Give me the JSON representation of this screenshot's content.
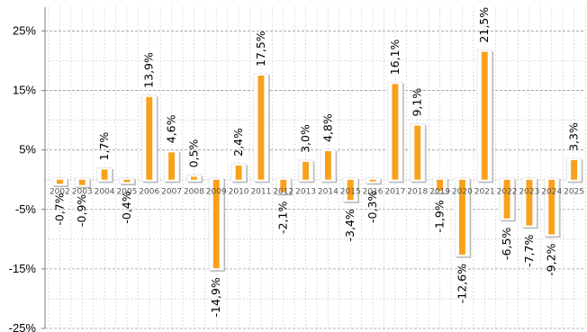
{
  "chart_data": {
    "type": "bar",
    "categories": [
      "2002",
      "2003",
      "2004",
      "2005",
      "2006",
      "2007",
      "2008",
      "2009",
      "2010",
      "2011",
      "2012",
      "2013",
      "2014",
      "2015",
      "2016",
      "2017",
      "2018",
      "2019",
      "2020",
      "2021",
      "2022",
      "2023",
      "2024",
      "2025"
    ],
    "values": [
      -0.7,
      -0.9,
      1.7,
      -0.4,
      13.9,
      4.6,
      0.5,
      -14.9,
      2.4,
      17.5,
      -2.1,
      3.0,
      4.8,
      -3.4,
      -0.3,
      16.1,
      9.1,
      -1.9,
      -12.6,
      21.5,
      -6.5,
      -7.7,
      -9.2,
      3.3
    ],
    "data_labels": [
      "-0,7%",
      "-0,9%",
      "1,7%",
      "-0,4%",
      "13,9%",
      "4,6%",
      "0,5%",
      "-14,9%",
      "2,4%",
      "17,5%",
      "-2,1%",
      "3,0%",
      "4,8%",
      "-3,4%",
      "-0,3%",
      "16,1%",
      "9,1%",
      "-1,9%",
      "-12,6%",
      "21,5%",
      "-6,5%",
      "-7,7%",
      "-9,2%",
      "3,3%"
    ],
    "y_ticks": [
      -25,
      -15,
      -5,
      5,
      15,
      25
    ],
    "y_tick_labels": [
      "-25%",
      "-15%",
      "-5%",
      "5%",
      "15%",
      "25%"
    ],
    "ylim": [
      -25,
      29
    ],
    "title": "",
    "xlabel": "",
    "ylabel": "",
    "grid": true,
    "colors": {
      "bar_fill": "#f9a11b",
      "bar_frame": "#ffffff",
      "bar_shadow": "#9a9a9a",
      "grid": "#c8c8c8"
    }
  }
}
